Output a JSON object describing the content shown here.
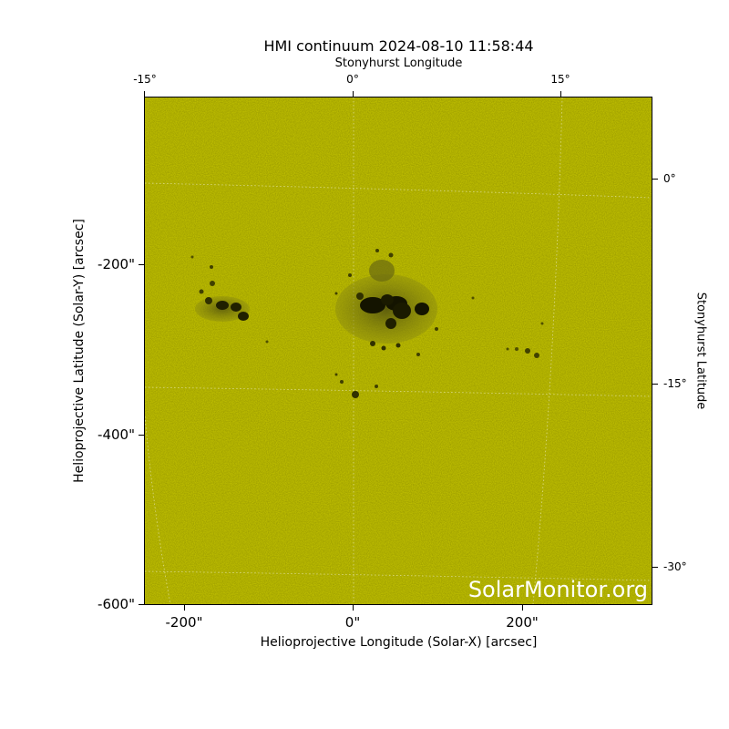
{
  "title": "HMI continuum 2024-08-10 11:58:44",
  "top_axis_label": "Stonyhurst Longitude",
  "top_ticks": [
    "-15°",
    "0°",
    "15°"
  ],
  "bottom_ticks": [
    "-200\"",
    "0\"",
    "200\""
  ],
  "left_ticks": [
    "-200\"",
    "-400\"",
    "-600\""
  ],
  "right_ticks": [
    "0°",
    "-15°",
    "-30°"
  ],
  "x_label": "Helioprojective Longitude (Solar-X) [arcsec]",
  "y_label": "Helioprojective Latitude (Solar-Y) [arcsec]",
  "y_label_right": "Stonyhurst Latitude",
  "watermark": "SolarMonitor.org",
  "colors": {
    "photosphere": "#c8c800",
    "sunspot": "#1a1a00",
    "grid": "#ffffff"
  }
}
